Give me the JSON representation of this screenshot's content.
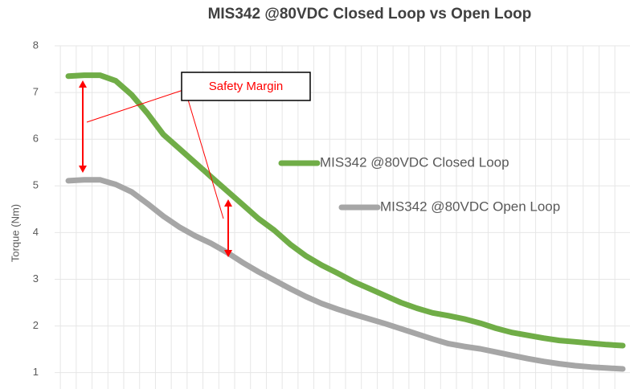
{
  "chart_data": {
    "type": "line",
    "title": "MIS342 @80VDC Closed Loop vs Open Loop",
    "y_label": "Torque (Nm)",
    "annotation": "Safety Margin",
    "categories": [
      null,
      null,
      null,
      null,
      null,
      null,
      null,
      null,
      null,
      null,
      null,
      null,
      null,
      null,
      null,
      null,
      null,
      null,
      null,
      null,
      null,
      null,
      null,
      null,
      null,
      null,
      null,
      null,
      null,
      null,
      null,
      null,
      null,
      null,
      null,
      null
    ],
    "series": [
      {
        "name": "MIS342 @80VDC Closed Loop",
        "color": "#70ad47",
        "values": [
          7.35,
          7.37,
          7.37,
          7.25,
          6.95,
          6.55,
          6.1,
          5.8,
          5.5,
          5.2,
          4.9,
          4.6,
          4.3,
          4.05,
          3.75,
          3.5,
          3.3,
          3.13,
          2.95,
          2.8,
          2.65,
          2.5,
          2.38,
          2.28,
          2.22,
          2.15,
          2.06,
          1.95,
          1.86,
          1.8,
          1.74,
          1.69,
          1.66,
          1.63,
          1.6,
          1.58
        ]
      },
      {
        "name": "MIS342 @80VDC Open Loop",
        "color": "#a6a6a6",
        "values": [
          5.11,
          5.13,
          5.13,
          5.03,
          4.87,
          4.62,
          4.35,
          4.12,
          3.93,
          3.77,
          3.58,
          3.36,
          3.16,
          2.98,
          2.8,
          2.63,
          2.48,
          2.36,
          2.25,
          2.15,
          2.05,
          1.94,
          1.83,
          1.72,
          1.62,
          1.56,
          1.51,
          1.44,
          1.37,
          1.3,
          1.24,
          1.19,
          1.15,
          1.12,
          1.1,
          1.08
        ]
      }
    ],
    "ylim": [
      0.65,
      8
    ],
    "yticks": [
      1,
      2,
      3,
      4,
      5,
      6,
      7,
      8
    ],
    "grid": true
  }
}
